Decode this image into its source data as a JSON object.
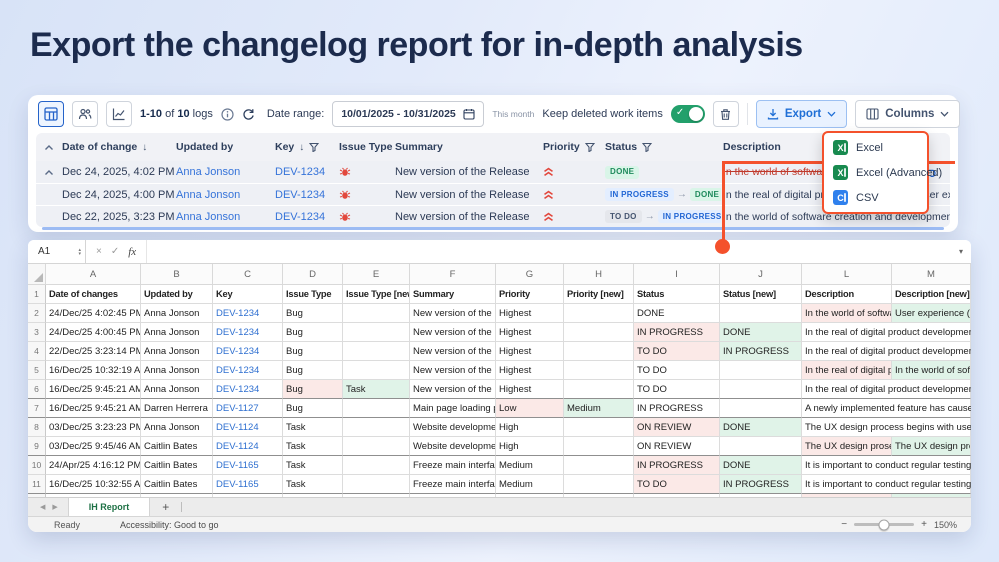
{
  "page": {
    "title": "Export the changelog report for in-depth analysis"
  },
  "colors": {
    "accent_orange": "#F4512C",
    "excel_green": "#188A4F",
    "csv_blue": "#2F80ED",
    "toggle_green": "#22A06B",
    "link_blue": "#3573D9",
    "title_navy": "#1C2B4D",
    "chip_done_text": "#1E8A5C",
    "chip_inprogress_text": "#2166D4",
    "old_cell_pink": "#FBE9E7",
    "new_cell_green": "#E0F3E8"
  },
  "icons": {
    "sort_desc": "↓",
    "chip_arrow": "→",
    "formula_cancel": "×",
    "formula_enter": "✓",
    "dropdown_caret": "▾",
    "stepper_up": "▴",
    "stepper_down": "▾",
    "tab_prev": "◀",
    "tab_next": "▶",
    "add_sheet": "+",
    "zoom_out": "−",
    "zoom_in": "+",
    "toggle_check": "✓",
    "button_caret": "⌄"
  },
  "changelog": {
    "toolbar": {
      "logs": {
        "range": "1-10",
        "of": "of",
        "total": "10",
        "unit": "logs"
      },
      "date_range_label": "Date range:",
      "date_range_value": "10/01/2025 - 10/31/2025",
      "date_hint": "This month",
      "keep_deleted_label": "Keep deleted work items",
      "export_label": "Export",
      "columns_label": "Columns"
    },
    "columns": [
      {
        "label": "Date of change",
        "sort": true
      },
      {
        "label": "Updated by"
      },
      {
        "label": "Key",
        "sort": true,
        "filter": true
      },
      {
        "label": "Issue Type"
      },
      {
        "label": "Summary"
      },
      {
        "label": "Priority",
        "filter": true
      },
      {
        "label": "Status",
        "filter": true
      },
      {
        "label": "Description"
      }
    ],
    "rows": [
      {
        "expander": true,
        "date": "Dec 24, 2025, 4:02 PM",
        "updated_by": "Anna Jonson",
        "key": "DEV-1234",
        "issue_type": "bug",
        "summary": "New version of the Release",
        "priority": "highest",
        "status_chips": [
          {
            "label": "DONE",
            "kind": "done"
          }
        ],
        "description": "In the world of software",
        "deleted": true,
        "undo": true
      },
      {
        "date": "Dec 24, 2025, 4:00 PM",
        "updated_by": "Anna Jonson",
        "key": "DEV-1234",
        "issue_type": "bug",
        "summary": "New version of the Release",
        "priority": "highest",
        "status_chips": [
          {
            "label": "IN PROGRESS",
            "kind": "inprogress"
          },
          {
            "label": "DONE",
            "kind": "done"
          }
        ],
        "description": "In the real of digital product development, user expe..."
      },
      {
        "date": "Dec 22, 2025, 3:23 PM",
        "updated_by": "Anna Jonson",
        "key": "DEV-1234",
        "issue_type": "bug",
        "summary": "New version of the Release",
        "priority": "highest",
        "status_chips": [
          {
            "label": "TO DO",
            "kind": "todo"
          },
          {
            "label": "IN PROGRESS",
            "kind": "inprogress"
          }
        ],
        "description": "In the world of software creation and development u..."
      }
    ],
    "export_menu": [
      {
        "label": "Excel",
        "icon": "excel"
      },
      {
        "label": "Excel (Advanced)",
        "icon": "excel"
      },
      {
        "label": "CSV",
        "icon": "csv"
      }
    ]
  },
  "spreadsheet": {
    "name_box": "A1",
    "fx": "fx",
    "columns": [
      "A",
      "B",
      "C",
      "D",
      "E",
      "F",
      "G",
      "H",
      "I",
      "J",
      "L",
      "M"
    ],
    "header_cells": [
      "Date of changes",
      "Updated by",
      "Key",
      "Issue Type",
      "Issue Type [new]",
      "Summary",
      "Priority",
      "Priority [new]",
      "Status",
      "Status [new]",
      "Description",
      "Description [new]"
    ],
    "rows": [
      {
        "n": "2",
        "cells": [
          "24/Dec/25 4:02:45 PM",
          "Anna Jonson",
          {
            "t": "DEV-1234",
            "k": "link"
          },
          "Bug",
          "",
          "New version of the Rele",
          "Highest",
          "",
          "DONE",
          "",
          {
            "t": "In the world of software",
            "k": "old"
          },
          {
            "t": "User experience (UX) de",
            "k": "new"
          }
        ]
      },
      {
        "n": "3",
        "cells": [
          "24/Dec/25 4:00:45 PM",
          "Anna Jonson",
          {
            "t": "DEV-1234",
            "k": "link"
          },
          "Bug",
          "",
          "New version of the Rele",
          "Highest",
          "",
          {
            "t": "IN PROGRESS",
            "k": "old"
          },
          {
            "t": "DONE",
            "k": "new"
          },
          {
            "t": "In the real of digital product development, user e",
            "k": "span"
          },
          ""
        ]
      },
      {
        "n": "4",
        "cells": [
          "22/Dec/25 3:23:14 PM",
          "Anna Jonson",
          {
            "t": "DEV-1234",
            "k": "link"
          },
          "Bug",
          "",
          "New version of the Rele",
          "Highest",
          "",
          {
            "t": "TO DO",
            "k": "old"
          },
          {
            "t": "IN PROGRESS",
            "k": "new"
          },
          {
            "t": "In the real of digital product development, user e",
            "k": "span"
          },
          ""
        ]
      },
      {
        "n": "5",
        "cells": [
          "16/Dec/25 10:32:19 AM",
          "Anna Jonson",
          {
            "t": "DEV-1234",
            "k": "link"
          },
          "Bug",
          "",
          "New version of the Rele",
          "Highest",
          "",
          "TO DO",
          "",
          {
            "t": "In the real of digital proc",
            "k": "old"
          },
          {
            "t": "In the world of software",
            "k": "new"
          }
        ]
      },
      {
        "n": "6",
        "gend": true,
        "cells": [
          "16/Dec/25 9:45:21 AM",
          "Anna Jonson",
          {
            "t": "DEV-1234",
            "k": "link"
          },
          {
            "t": "Bug",
            "k": "old"
          },
          {
            "t": "Task",
            "k": "new"
          },
          "New version of the Rele",
          "Highest",
          "",
          "TO DO",
          "",
          {
            "t": "In the real of digital product development, user e",
            "k": "span"
          },
          ""
        ]
      },
      {
        "n": "7",
        "gend": true,
        "cells": [
          "16/Dec/25 9:45:21 AM",
          "Darren Herrera",
          {
            "t": "DEV-1127",
            "k": "link"
          },
          "Bug",
          "",
          "Main page loading prob",
          {
            "t": "Low",
            "k": "old"
          },
          {
            "t": "Medium",
            "k": "new"
          },
          "IN PROGRESS",
          "",
          {
            "t": "A newly implemented feature has caused unexpe",
            "k": "span"
          },
          ""
        ]
      },
      {
        "n": "8",
        "cells": [
          "03/Dec/25 3:23:23 PM",
          "Anna Jonson",
          {
            "t": "DEV-1124",
            "k": "link"
          },
          "Task",
          "",
          "Website development",
          "High",
          "",
          {
            "t": "ON REVIEW",
            "k": "old"
          },
          {
            "t": "DONE",
            "k": "new"
          },
          {
            "t": "The UX design process begins with user research,",
            "k": "span"
          },
          ""
        ]
      },
      {
        "n": "9",
        "gend": true,
        "cells": [
          "03/Dec/25 9:45/46 AM",
          "Caitlin Bates",
          {
            "t": "DEV-1124",
            "k": "link"
          },
          "Task",
          "",
          "Website development",
          "High",
          "",
          "ON REVIEW",
          "",
          {
            "t": "The UX design prosec be",
            "k": "old"
          },
          {
            "t": "The UX design process b",
            "k": "new"
          }
        ]
      },
      {
        "n": "10",
        "cells": [
          "24/Apr/25 4:16:12 PM",
          "Caitlin Bates",
          {
            "t": "DEV-1165",
            "k": "link"
          },
          "Task",
          "",
          "Freeze main interface",
          "Medium",
          "",
          {
            "t": "IN PROGRESS",
            "k": "old"
          },
          {
            "t": "DONE",
            "k": "new"
          },
          {
            "t": "It is important to conduct regular testing and qua",
            "k": "span"
          },
          ""
        ]
      },
      {
        "n": "11",
        "gend": true,
        "cells": [
          "16/Dec/25 10:32:55 AM",
          "Caitlin Bates",
          {
            "t": "DEV-1165",
            "k": "link"
          },
          "Task",
          "",
          "Freeze main interface",
          "Medium",
          "",
          {
            "t": "TO DO",
            "k": "old"
          },
          {
            "t": "IN PROGRESS",
            "k": "new"
          },
          {
            "t": "It is important to conduct regular testing and qua",
            "k": "span"
          },
          ""
        ]
      },
      {
        "n": "12",
        "cells": [
          "",
          "",
          "",
          "",
          "",
          "",
          "",
          "",
          "",
          "",
          {
            "t": "",
            "k": "old"
          },
          {
            "t": "",
            "k": "new"
          }
        ]
      }
    ],
    "sheet_tab": "IH Report",
    "status": {
      "ready": "Ready",
      "accessibility": "Accessibility: Good to go",
      "zoom": "150%"
    }
  }
}
